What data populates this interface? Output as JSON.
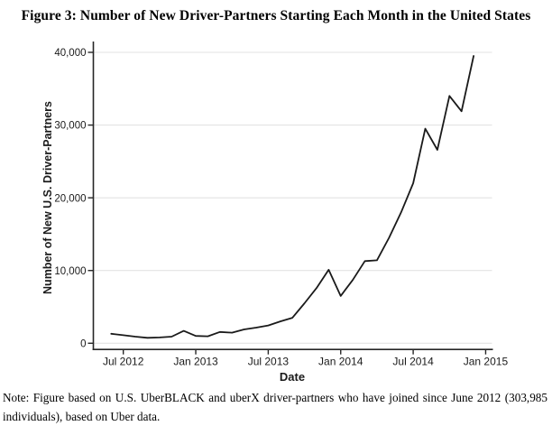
{
  "figure": {
    "title": "Figure 3: Number of New Driver-Partners Starting Each Month in the United States",
    "note_lines": [
      "Note: Figure based on U.S. UberBLACK and uberX driver-partners who have joined since June 2012 (303,985",
      "individuals), based on Uber data."
    ]
  },
  "chart_data": {
    "type": "line",
    "title": "Figure 3: Number of New Driver-Partners Starting Each Month in the United States",
    "xlabel": "Date",
    "ylabel": "Number of New U.S. Driver-Partners",
    "x": [
      "Jun 2012",
      "Jul 2012",
      "Aug 2012",
      "Sep 2012",
      "Oct 2012",
      "Nov 2012",
      "Dec 2012",
      "Jan 2013",
      "Feb 2013",
      "Mar 2013",
      "Apr 2013",
      "May 2013",
      "Jun 2013",
      "Jul 2013",
      "Aug 2013",
      "Sep 2013",
      "Oct 2013",
      "Nov 2013",
      "Dec 2013",
      "Jan 2014",
      "Feb 2014",
      "Mar 2014",
      "Apr 2014",
      "May 2014",
      "Jun 2014",
      "Jul 2014",
      "Aug 2014",
      "Sep 2014",
      "Oct 2014",
      "Nov 2014",
      "Dec 2014"
    ],
    "y": [
      1300,
      1100,
      900,
      750,
      800,
      900,
      1700,
      1000,
      950,
      1550,
      1450,
      1900,
      2150,
      2450,
      3000,
      3500,
      5500,
      7600,
      10100,
      6500,
      8700,
      11300,
      11400,
      14500,
      18000,
      22000,
      29500,
      26600,
      34000,
      31900,
      39500
    ],
    "ylim": [
      0,
      40000
    ],
    "yticks": {
      "values": [
        0,
        10000,
        20000,
        30000,
        40000
      ],
      "labels": [
        "0",
        "10,000",
        "20,000",
        "30,000",
        "40,000"
      ]
    },
    "xticks": {
      "month_index": [
        1,
        7,
        13,
        19,
        25,
        31
      ],
      "labels": [
        "Jul 2012",
        "Jan 2013",
        "Jul 2013",
        "Jan 2014",
        "Jul 2014",
        "Jan 2015"
      ]
    },
    "grid": "horizontal",
    "legend": "none",
    "line_color": "#1a1a1a",
    "gridline_color": "#e3e3e3",
    "axis_color": "#262626",
    "background": "#ffffff"
  }
}
